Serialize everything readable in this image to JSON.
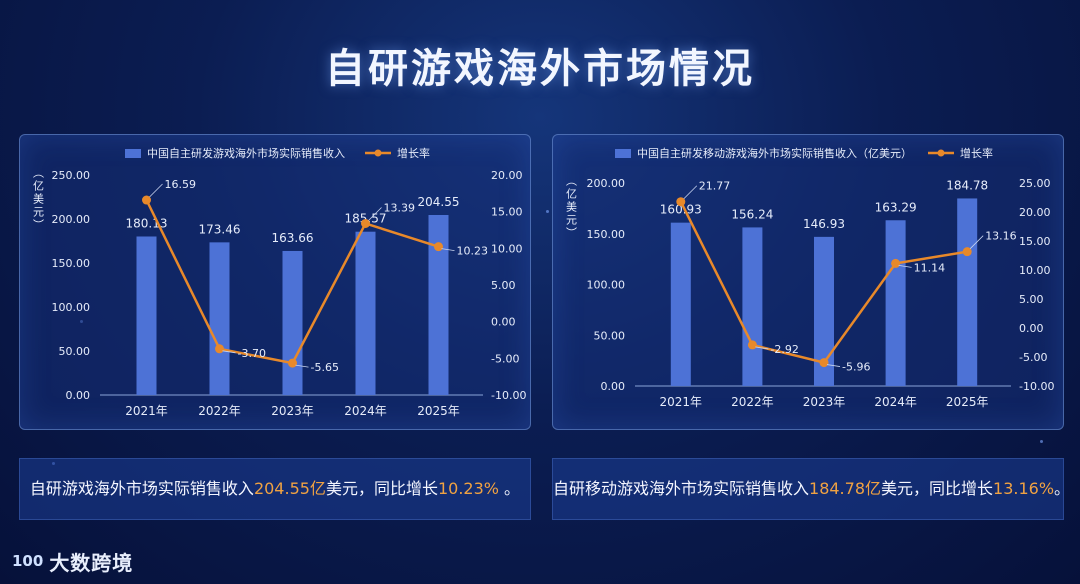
{
  "title": "自研游戏海外市场情况",
  "charts": [
    {
      "type": "bar+line",
      "legend": {
        "bar": "中国自主研发游戏海外市场实际销售收入",
        "line": "增长率"
      },
      "ylabel": "（亿美元）",
      "categories": [
        "2021年",
        "2022年",
        "2023年",
        "2024年",
        "2025年"
      ],
      "bar_values": [
        180.13,
        173.46,
        163.66,
        185.57,
        204.55
      ],
      "line_values": [
        16.59,
        -3.7,
        -5.65,
        13.39,
        10.23
      ],
      "bar_labels": [
        "180.13",
        "173.46",
        "163.66",
        "185.57",
        "204.55"
      ],
      "line_labels": [
        "16.59",
        "-3.70",
        "-5.65",
        "13.39",
        "10.23"
      ],
      "y_left_ticks": [
        "250.00",
        "200.00",
        "150.00",
        "100.00",
        "50.00",
        "0.00"
      ],
      "y_right_ticks": [
        "20.00",
        "15.00",
        "10.00",
        "5.00",
        "0.00",
        "-5.00",
        "-10.00"
      ],
      "y_left_range": [
        0,
        250
      ],
      "y_right_range": [
        -10,
        20
      ],
      "bar_color": "#4d72d6",
      "line_color": "#e8892a"
    },
    {
      "type": "bar+line",
      "legend": {
        "bar": "中国自主研发移动游戏海外市场实际销售收入（亿美元）",
        "line": "增长率"
      },
      "ylabel": "（亿美元）",
      "categories": [
        "2021年",
        "2022年",
        "2023年",
        "2024年",
        "2025年"
      ],
      "bar_values": [
        160.93,
        156.24,
        146.93,
        163.29,
        184.78
      ],
      "line_values": [
        21.77,
        -2.92,
        -5.96,
        11.14,
        13.16
      ],
      "bar_labels": [
        "160.93",
        "156.24",
        "146.93",
        "163.29",
        "184.78"
      ],
      "line_labels": [
        "21.77",
        "-2.92",
        "-5.96",
        "11.14",
        "13.16"
      ],
      "y_left_ticks": [
        "200.00",
        "150.00",
        "100.00",
        "50.00",
        "0.00"
      ],
      "y_right_ticks": [
        "25.00",
        "20.00",
        "15.00",
        "10.00",
        "5.00",
        "0.00",
        "-5.00",
        "-10.00"
      ],
      "y_left_range": [
        0,
        200
      ],
      "y_right_range": [
        -10,
        25
      ],
      "bar_color": "#4d72d6",
      "line_color": "#e8892a"
    }
  ],
  "summaries": [
    {
      "prefix": "自研游戏海外市场实际销售收入",
      "value": "204.55亿",
      "middle": "美元，同比增长",
      "rate": "10.23%",
      "suffix": " 。"
    },
    {
      "prefix": "自研移动游戏海外市场实际销售收入",
      "value": "184.78亿",
      "middle": "美元，同比增长",
      "rate": "13.16%",
      "suffix": "。"
    }
  ],
  "logo": {
    "mark": "100",
    "text": "大数跨境"
  }
}
